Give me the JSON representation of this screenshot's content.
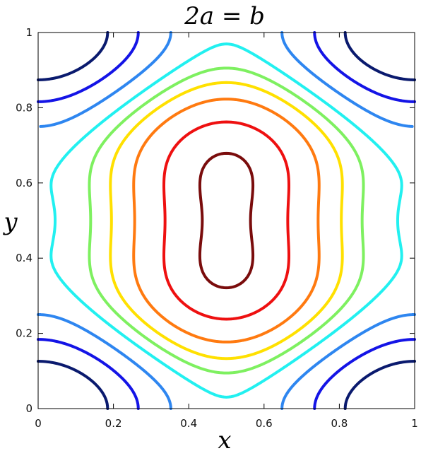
{
  "chart_data": {
    "type": "contour",
    "title": "2a = b",
    "xlabel": "x",
    "ylabel": "y",
    "xlim": [
      0,
      1
    ],
    "ylim": [
      0,
      1
    ],
    "x_ticks": [
      "0",
      "0.2",
      "0.4",
      "0.6",
      "0.8",
      "1"
    ],
    "y_ticks": [
      "0",
      "0.2",
      "0.4",
      "0.6",
      "0.8",
      "1"
    ],
    "grid": false,
    "legend": "none",
    "field": "z = sin^2(pi x) + sin^2(pi y) + 0.3 sin^2(2 pi y)",
    "levels": [
      {
        "value": 0.3,
        "color": "#0a1a6e"
      },
      {
        "value": 0.55,
        "color": "#1414e6"
      },
      {
        "value": 0.8,
        "color": "#2e86f0"
      },
      {
        "value": 1.02,
        "color": "#22f0f0"
      },
      {
        "value": 1.18,
        "color": "#7ef060"
      },
      {
        "value": 1.33,
        "color": "#ffe000"
      },
      {
        "value": 1.52,
        "color": "#ff7a10"
      },
      {
        "value": 1.76,
        "color": "#ee1010"
      },
      {
        "value": 1.96,
        "color": "#7a0c0c"
      }
    ]
  }
}
